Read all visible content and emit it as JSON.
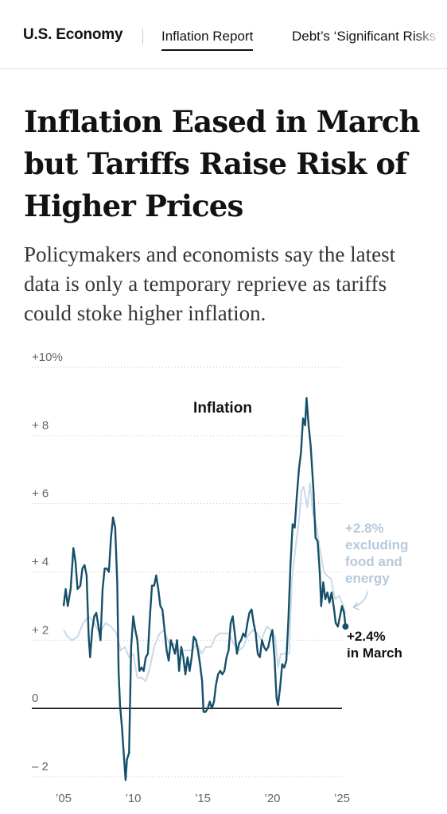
{
  "nav": {
    "section": "U.S. Economy",
    "links": [
      {
        "label": "Inflation Report",
        "active": true
      },
      {
        "label": "Debt’s ‘Significant Risks’"
      }
    ]
  },
  "article": {
    "headline": "Inflation Eased in March but Tariffs Raise Risk of Higher Prices",
    "summary": "Policymakers and economists say the latest data is only a temporary reprieve as tariffs could stoke higher inflation."
  },
  "colors": {
    "headline_series": "#16506a",
    "core_series": "#c9d9e8",
    "core_label": "#b6c9dc"
  },
  "chart_data": {
    "type": "line",
    "title": "Inflation",
    "y_ticks": [
      "+10%",
      "+ 8",
      "+ 6",
      "+ 4",
      "+ 2",
      "0",
      "– 2"
    ],
    "x_ticks": [
      "’05",
      "’10",
      "’15",
      "’20",
      "’25"
    ],
    "ylim": [
      -2,
      10
    ],
    "xlim": [
      2004.5,
      2025.5
    ],
    "grid": "dotted horizontal",
    "series": [
      {
        "name": "",
        "role": "headline",
        "points": [
          [
            2005.0,
            3.0
          ],
          [
            2005.15,
            3.5
          ],
          [
            2005.3,
            3.0
          ],
          [
            2005.5,
            3.5
          ],
          [
            2005.7,
            4.7
          ],
          [
            2005.85,
            4.3
          ],
          [
            2006.0,
            3.5
          ],
          [
            2006.2,
            3.6
          ],
          [
            2006.35,
            4.1
          ],
          [
            2006.5,
            4.2
          ],
          [
            2006.65,
            3.9
          ],
          [
            2006.8,
            2.1
          ],
          [
            2006.9,
            1.5
          ],
          [
            2007.05,
            2.3
          ],
          [
            2007.2,
            2.7
          ],
          [
            2007.35,
            2.8
          ],
          [
            2007.5,
            2.4
          ],
          [
            2007.65,
            2.0
          ],
          [
            2007.8,
            3.5
          ],
          [
            2007.95,
            4.1
          ],
          [
            2008.1,
            4.1
          ],
          [
            2008.25,
            4.0
          ],
          [
            2008.4,
            5.0
          ],
          [
            2008.55,
            5.6
          ],
          [
            2008.7,
            5.3
          ],
          [
            2008.85,
            3.7
          ],
          [
            2008.95,
            1.1
          ],
          [
            2009.05,
            0.1
          ],
          [
            2009.2,
            -0.6
          ],
          [
            2009.3,
            -1.2
          ],
          [
            2009.45,
            -2.1
          ],
          [
            2009.55,
            -1.5
          ],
          [
            2009.7,
            -1.3
          ],
          [
            2009.85,
            1.8
          ],
          [
            2010.0,
            2.7
          ],
          [
            2010.15,
            2.3
          ],
          [
            2010.3,
            2.0
          ],
          [
            2010.45,
            1.1
          ],
          [
            2010.6,
            1.2
          ],
          [
            2010.75,
            1.1
          ],
          [
            2010.9,
            1.5
          ],
          [
            2011.05,
            1.6
          ],
          [
            2011.2,
            2.7
          ],
          [
            2011.35,
            3.6
          ],
          [
            2011.5,
            3.6
          ],
          [
            2011.65,
            3.9
          ],
          [
            2011.8,
            3.5
          ],
          [
            2011.95,
            3.0
          ],
          [
            2012.1,
            2.9
          ],
          [
            2012.25,
            2.3
          ],
          [
            2012.4,
            1.7
          ],
          [
            2012.55,
            1.4
          ],
          [
            2012.7,
            2.0
          ],
          [
            2012.85,
            1.8
          ],
          [
            2013.0,
            1.6
          ],
          [
            2013.15,
            2.0
          ],
          [
            2013.3,
            1.1
          ],
          [
            2013.45,
            1.8
          ],
          [
            2013.6,
            1.5
          ],
          [
            2013.75,
            1.0
          ],
          [
            2013.9,
            1.5
          ],
          [
            2014.05,
            1.1
          ],
          [
            2014.2,
            1.5
          ],
          [
            2014.35,
            2.1
          ],
          [
            2014.5,
            2.0
          ],
          [
            2014.65,
            1.7
          ],
          [
            2014.8,
            1.3
          ],
          [
            2014.95,
            0.8
          ],
          [
            2015.05,
            -0.1
          ],
          [
            2015.2,
            -0.1
          ],
          [
            2015.35,
            0.0
          ],
          [
            2015.5,
            0.2
          ],
          [
            2015.65,
            0.0
          ],
          [
            2015.8,
            0.2
          ],
          [
            2015.95,
            0.7
          ],
          [
            2016.1,
            1.0
          ],
          [
            2016.25,
            1.1
          ],
          [
            2016.4,
            1.0
          ],
          [
            2016.55,
            1.1
          ],
          [
            2016.7,
            1.5
          ],
          [
            2016.85,
            1.7
          ],
          [
            2017.0,
            2.5
          ],
          [
            2017.15,
            2.7
          ],
          [
            2017.3,
            2.2
          ],
          [
            2017.45,
            1.6
          ],
          [
            2017.6,
            1.9
          ],
          [
            2017.75,
            2.0
          ],
          [
            2017.9,
            2.2
          ],
          [
            2018.05,
            2.1
          ],
          [
            2018.2,
            2.5
          ],
          [
            2018.35,
            2.8
          ],
          [
            2018.5,
            2.9
          ],
          [
            2018.65,
            2.5
          ],
          [
            2018.8,
            2.2
          ],
          [
            2018.95,
            1.6
          ],
          [
            2019.1,
            1.5
          ],
          [
            2019.25,
            2.0
          ],
          [
            2019.4,
            1.8
          ],
          [
            2019.55,
            1.7
          ],
          [
            2019.7,
            1.8
          ],
          [
            2019.85,
            2.1
          ],
          [
            2020.0,
            2.3
          ],
          [
            2020.15,
            1.5
          ],
          [
            2020.3,
            0.3
          ],
          [
            2020.4,
            0.1
          ],
          [
            2020.55,
            0.6
          ],
          [
            2020.7,
            1.3
          ],
          [
            2020.85,
            1.2
          ],
          [
            2021.0,
            1.4
          ],
          [
            2021.15,
            2.6
          ],
          [
            2021.3,
            4.2
          ],
          [
            2021.45,
            5.4
          ],
          [
            2021.6,
            5.3
          ],
          [
            2021.75,
            6.2
          ],
          [
            2021.9,
            7.0
          ],
          [
            2022.05,
            7.5
          ],
          [
            2022.2,
            8.5
          ],
          [
            2022.35,
            8.3
          ],
          [
            2022.45,
            9.1
          ],
          [
            2022.6,
            8.3
          ],
          [
            2022.75,
            7.7
          ],
          [
            2022.95,
            6.4
          ],
          [
            2023.1,
            5.0
          ],
          [
            2023.25,
            4.9
          ],
          [
            2023.4,
            4.0
          ],
          [
            2023.5,
            3.0
          ],
          [
            2023.65,
            3.7
          ],
          [
            2023.8,
            3.2
          ],
          [
            2023.95,
            3.4
          ],
          [
            2024.1,
            3.1
          ],
          [
            2024.25,
            3.4
          ],
          [
            2024.4,
            3.0
          ],
          [
            2024.55,
            2.5
          ],
          [
            2024.7,
            2.4
          ],
          [
            2024.85,
            2.7
          ],
          [
            2025.0,
            3.0
          ],
          [
            2025.15,
            2.8
          ],
          [
            2025.25,
            2.4
          ]
        ]
      },
      {
        "name": "",
        "role": "core",
        "points": [
          [
            2005.0,
            2.3
          ],
          [
            2005.3,
            2.1
          ],
          [
            2005.6,
            2.0
          ],
          [
            2006.0,
            2.1
          ],
          [
            2006.4,
            2.5
          ],
          [
            2006.8,
            2.7
          ],
          [
            2007.2,
            2.5
          ],
          [
            2007.6,
            2.2
          ],
          [
            2008.0,
            2.5
          ],
          [
            2008.4,
            2.4
          ],
          [
            2008.8,
            2.2
          ],
          [
            2009.1,
            1.7
          ],
          [
            2009.4,
            1.8
          ],
          [
            2009.7,
            1.5
          ],
          [
            2010.0,
            1.6
          ],
          [
            2010.3,
            0.9
          ],
          [
            2010.6,
            0.9
          ],
          [
            2010.9,
            0.8
          ],
          [
            2011.2,
            1.2
          ],
          [
            2011.5,
            1.8
          ],
          [
            2011.9,
            2.2
          ],
          [
            2012.2,
            2.3
          ],
          [
            2012.6,
            1.9
          ],
          [
            2012.9,
            1.9
          ],
          [
            2013.2,
            1.7
          ],
          [
            2013.6,
            1.7
          ],
          [
            2013.9,
            1.7
          ],
          [
            2014.2,
            1.7
          ],
          [
            2014.6,
            1.9
          ],
          [
            2014.9,
            1.6
          ],
          [
            2015.2,
            1.8
          ],
          [
            2015.6,
            1.8
          ],
          [
            2015.9,
            2.1
          ],
          [
            2016.2,
            2.2
          ],
          [
            2016.6,
            2.2
          ],
          [
            2016.9,
            2.2
          ],
          [
            2017.2,
            1.9
          ],
          [
            2017.6,
            1.7
          ],
          [
            2017.9,
            1.8
          ],
          [
            2018.2,
            2.1
          ],
          [
            2018.6,
            2.3
          ],
          [
            2018.9,
            2.2
          ],
          [
            2019.2,
            2.0
          ],
          [
            2019.6,
            2.4
          ],
          [
            2019.9,
            2.3
          ],
          [
            2020.2,
            2.1
          ],
          [
            2020.4,
            1.2
          ],
          [
            2020.6,
            1.6
          ],
          [
            2020.9,
            1.6
          ],
          [
            2021.2,
            1.6
          ],
          [
            2021.4,
            3.8
          ],
          [
            2021.6,
            4.5
          ],
          [
            2021.9,
            5.5
          ],
          [
            2022.1,
            6.4
          ],
          [
            2022.25,
            6.5
          ],
          [
            2022.5,
            5.9
          ],
          [
            2022.7,
            6.6
          ],
          [
            2022.9,
            5.7
          ],
          [
            2023.1,
            5.5
          ],
          [
            2023.4,
            4.7
          ],
          [
            2023.7,
            4.0
          ],
          [
            2023.9,
            3.9
          ],
          [
            2024.2,
            3.8
          ],
          [
            2024.5,
            3.2
          ],
          [
            2024.8,
            3.3
          ],
          [
            2025.0,
            3.1
          ],
          [
            2025.25,
            2.8
          ]
        ]
      }
    ],
    "annotations": [
      {
        "series": "core",
        "lines": [
          "+2.8%",
          "excluding",
          "food and",
          "energy"
        ]
      },
      {
        "series": "headline",
        "lines": [
          "+2.4%",
          "in March"
        ]
      }
    ]
  }
}
